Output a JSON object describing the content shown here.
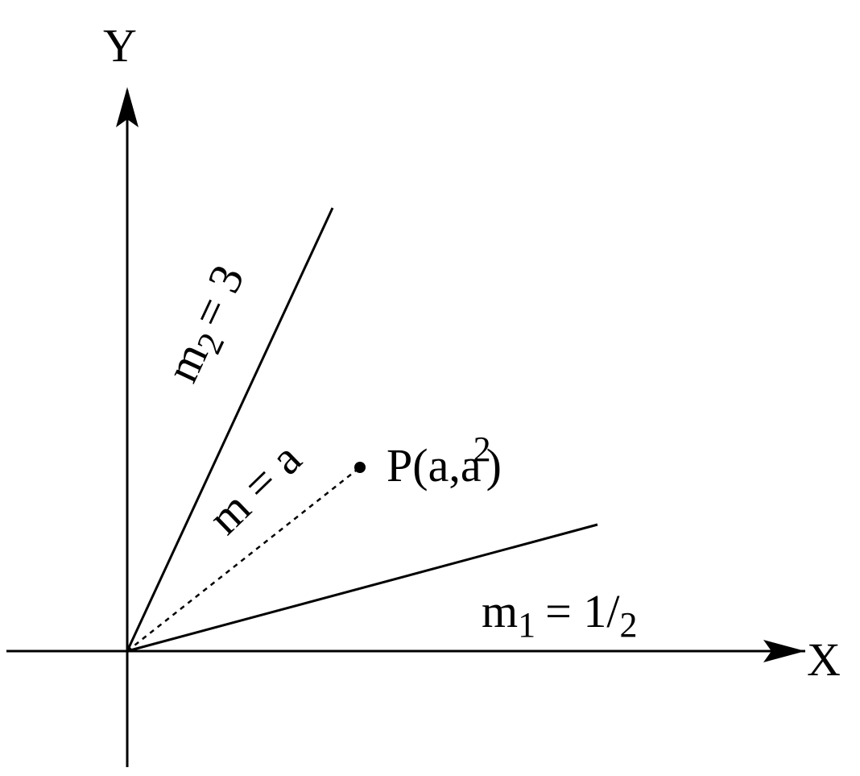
{
  "axes": {
    "x_label": "X",
    "y_label": "Y"
  },
  "lines": {
    "m2": {
      "symbol": "m",
      "subscript": "2",
      "equals": "= 3"
    },
    "m": {
      "text": "m = a"
    },
    "m1": {
      "symbol": "m",
      "subscript": "1",
      "equals": "= 1/",
      "denominator": "2"
    }
  },
  "point": {
    "text": "P(a,a",
    "superscript": "2",
    "close": ")"
  }
}
